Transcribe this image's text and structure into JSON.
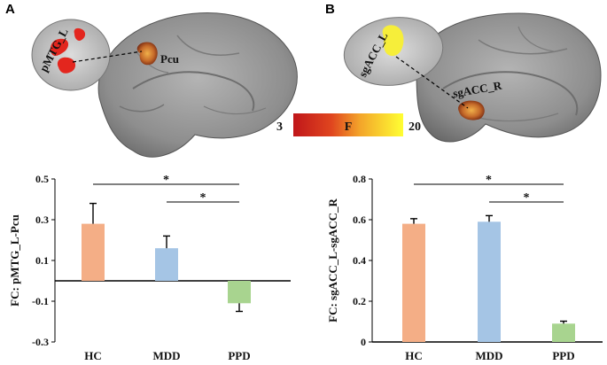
{
  "figure": {
    "panel_a_letter": "A",
    "panel_b_letter": "B",
    "panel_a_labels": {
      "small_region": "pMTG_L",
      "large_region": "Pcu"
    },
    "panel_b_labels": {
      "small_region": "sgACC_L",
      "large_region": "sgACC_R"
    },
    "colorbar": {
      "min_label": "3",
      "mid_label": "F",
      "max_label": "20",
      "color_low": "#c0161a",
      "color_high": "#ffff33"
    }
  },
  "chart_data": [
    {
      "type": "bar",
      "title": "",
      "xlabel": "",
      "ylabel": "FC: pMTG_L-Pcu",
      "categories": [
        "HC",
        "MDD",
        "PPD"
      ],
      "values": [
        0.28,
        0.16,
        -0.11
      ],
      "errors": [
        0.1,
        0.06,
        0.04
      ],
      "colors": [
        "#f4ae86",
        "#a5c5e5",
        "#a8d48f"
      ],
      "ylim": [
        -0.3,
        0.5
      ],
      "yticks": [
        "-0.3",
        "-0.1",
        "0.1",
        "0.3",
        "0.5"
      ],
      "significance": [
        {
          "from": "HC",
          "to": "PPD",
          "label": "*"
        },
        {
          "from": "MDD",
          "to": "PPD",
          "label": "*"
        }
      ]
    },
    {
      "type": "bar",
      "title": "",
      "xlabel": "",
      "ylabel": "FC: sgACC_L-sgACC_R",
      "categories": [
        "HC",
        "MDD",
        "PPD"
      ],
      "values": [
        0.58,
        0.59,
        0.09
      ],
      "errors": [
        0.025,
        0.03,
        0.012
      ],
      "colors": [
        "#f4ae86",
        "#a5c5e5",
        "#a8d48f"
      ],
      "ylim": [
        0,
        0.8
      ],
      "yticks": [
        "0",
        "0.2",
        "0.4",
        "0.6",
        "0.8"
      ],
      "significance": [
        {
          "from": "HC",
          "to": "PPD",
          "label": "*"
        },
        {
          "from": "MDD",
          "to": "PPD",
          "label": "*"
        }
      ]
    }
  ]
}
